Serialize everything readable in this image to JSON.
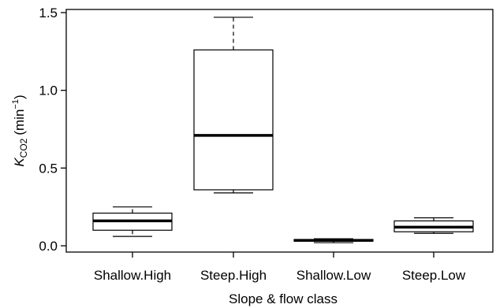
{
  "chart_data": {
    "type": "boxplot",
    "xlabel": "Slope & flow class",
    "ylabel": {
      "main": "K",
      "subscript": "CO2",
      "unit_open": "(min",
      "unit_sup": "−1",
      "unit_close": ")"
    },
    "ylim": [
      -0.03,
      1.52
    ],
    "yticks": [
      0.0,
      0.5,
      1.0,
      1.5
    ],
    "ytick_labels": [
      "0.0",
      "0.5",
      "1.0",
      "1.5"
    ],
    "grid": false,
    "categories": [
      "Shallow.High",
      "Steep.High",
      "Shallow.Low",
      "Steep.Low"
    ],
    "boxes": [
      {
        "min": 0.06,
        "q1": 0.1,
        "median": 0.16,
        "q3": 0.21,
        "max": 0.25
      },
      {
        "min": 0.34,
        "q1": 0.36,
        "median": 0.71,
        "q3": 1.26,
        "max": 1.47
      },
      {
        "min": 0.02,
        "q1": 0.03,
        "median": 0.035,
        "q3": 0.04,
        "max": 0.045
      },
      {
        "min": 0.08,
        "q1": 0.09,
        "median": 0.12,
        "q3": 0.16,
        "max": 0.18
      }
    ]
  }
}
